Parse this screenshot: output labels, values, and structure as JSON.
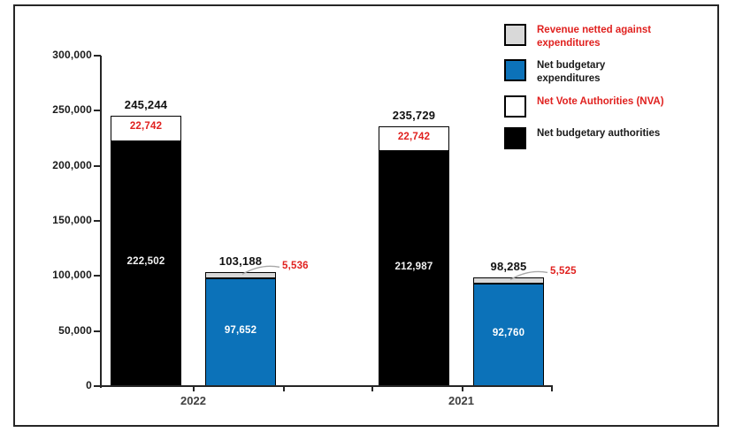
{
  "chart_data": {
    "type": "bar",
    "stacked": true,
    "title": "",
    "grid": false,
    "y_axis": {
      "min": 0,
      "max": 300000,
      "step": 50000,
      "tick_labels": [
        "0",
        "50,000",
        "100,000",
        "150,000",
        "200,000",
        "250,000",
        "300,000"
      ]
    },
    "x_axis": {
      "categories": [
        "2022",
        "2021"
      ]
    },
    "legend": {
      "position": "top-right",
      "items": [
        {
          "label": "Revenue netted against expenditures",
          "swatch_color": "#d9d9d9",
          "text_color": "#e0211f"
        },
        {
          "label": "Net budgetary expenditures",
          "swatch_color": "#0c72b9",
          "text_color": "#1a1a1a"
        },
        {
          "label": "Net Vote Authorities (NVA)",
          "swatch_color": "#ffffff",
          "text_color": "#e0211f"
        },
        {
          "label": "Net budgetary authorities",
          "swatch_color": "#000000",
          "text_color": "#1a1a1a"
        }
      ]
    },
    "groups": [
      {
        "category": "2022",
        "stacks": [
          {
            "id": "authorities-2022",
            "total": 245244,
            "total_label": "245,244",
            "segments": [
              {
                "series": "Net budgetary authorities",
                "value": 222502,
                "label": "222,502",
                "color": "#000000",
                "label_color": "#f2f2f2",
                "label_style": "inside"
              },
              {
                "series": "Net Vote Authorities (NVA)",
                "value": 22742,
                "label": "22,742",
                "color": "#ffffff",
                "label_color": "#e0211f",
                "label_style": "inside"
              }
            ]
          },
          {
            "id": "expenditures-2022",
            "total": 103188,
            "total_label": "103,188",
            "segments": [
              {
                "series": "Net budgetary expenditures",
                "value": 97652,
                "label": "97,652",
                "color": "#0c72b9",
                "label_color": "#ffffff",
                "label_style": "inside"
              },
              {
                "series": "Revenue netted against expenditures",
                "value": 5536,
                "label": "5,536",
                "color": "#d9d9d9",
                "label_color": "#e0211f",
                "label_style": "callout"
              }
            ]
          }
        ]
      },
      {
        "category": "2021",
        "stacks": [
          {
            "id": "authorities-2021",
            "total": 235729,
            "total_label": "235,729",
            "segments": [
              {
                "series": "Net budgetary authorities",
                "value": 212987,
                "label": "212,987",
                "color": "#000000",
                "label_color": "#f2f2f2",
                "label_style": "inside"
              },
              {
                "series": "Net Vote Authorities (NVA)",
                "value": 22742,
                "label": "22,742",
                "color": "#ffffff",
                "label_color": "#e0211f",
                "label_style": "inside"
              }
            ]
          },
          {
            "id": "expenditures-2021",
            "total": 98285,
            "total_label": "98,285",
            "segments": [
              {
                "series": "Net budgetary expenditures",
                "value": 92760,
                "label": "92,760",
                "color": "#0c72b9",
                "label_color": "#ffffff",
                "label_style": "inside"
              },
              {
                "series": "Revenue netted against expenditures",
                "value": 5525,
                "label": "5,525",
                "color": "#d9d9d9",
                "label_color": "#e0211f",
                "label_style": "callout"
              }
            ]
          }
        ]
      }
    ]
  }
}
